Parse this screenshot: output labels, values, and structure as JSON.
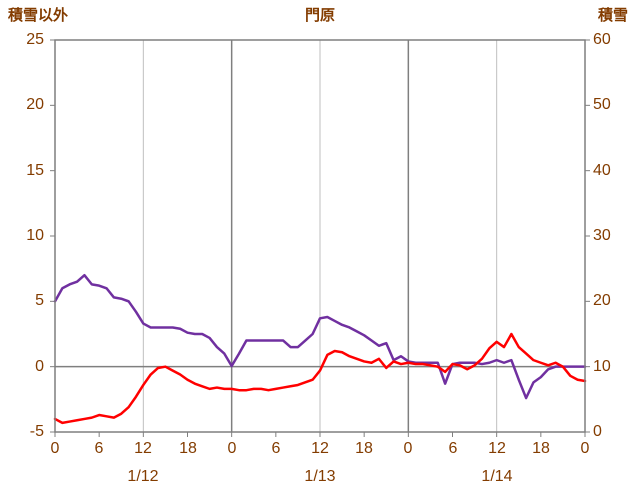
{
  "chart_data": {
    "type": "line",
    "title": "門原",
    "x_axis": {
      "unit": "hour",
      "sample_interval_hours": 1,
      "range_hours": [
        0,
        72
      ],
      "tick_hours": [
        0,
        6,
        12,
        18,
        24,
        30,
        36,
        42,
        48,
        54,
        60,
        66,
        72
      ],
      "tick_labels": [
        "0",
        "6",
        "12",
        "18",
        "0",
        "6",
        "12",
        "18",
        "0",
        "6",
        "12",
        "18",
        "0"
      ],
      "day_labels": [
        "1/12",
        "1/13",
        "1/14"
      ]
    },
    "left_axis": {
      "title": "積雪以外",
      "tick_labels": [
        "25",
        "20",
        "15",
        "10",
        "5",
        "0",
        "-5"
      ],
      "range": [
        -5,
        25
      ]
    },
    "right_axis": {
      "title": "積雪",
      "tick_labels": [
        "60",
        "50",
        "40",
        "30",
        "20",
        "10",
        "0"
      ],
      "range": [
        0,
        60
      ]
    },
    "gridlines": {
      "vertical_hours": [
        12,
        24,
        36,
        48,
        60
      ],
      "day_boundary_hours": [
        24,
        48
      ],
      "horizontal_left_values": [
        0
      ]
    },
    "series": [
      {
        "name": "積雪",
        "axis": "right",
        "color": "#7030A0",
        "values": [
          20,
          22,
          22.6,
          23,
          24,
          22.6,
          22.4,
          22,
          20.6,
          20.4,
          20,
          18.4,
          16.6,
          16,
          16,
          16,
          16,
          15.8,
          15.2,
          15,
          15,
          14.4,
          13,
          12,
          10.1,
          12,
          14,
          14,
          14,
          14,
          14,
          14,
          13,
          13,
          14,
          15,
          17.4,
          17.6,
          17,
          16.4,
          16,
          15.4,
          14.8,
          14,
          13.2,
          13.6,
          11,
          11.6,
          10.8,
          10.6,
          10.6,
          10.6,
          10.6,
          7.4,
          10.4,
          10.6,
          10.6,
          10.6,
          10.4,
          10.6,
          11,
          10.6,
          11,
          8,
          5.2,
          7.6,
          8.4,
          9.6,
          10,
          10,
          10,
          10,
          10
        ]
      },
      {
        "name": "積雪以外",
        "axis": "left",
        "color": "#FF0000",
        "values": [
          -4,
          -4.3,
          -4.2,
          -4.1,
          -4,
          -3.9,
          -3.7,
          -3.8,
          -3.9,
          -3.6,
          -3.1,
          -2.3,
          -1.4,
          -0.6,
          -0.1,
          0,
          -0.3,
          -0.6,
          -1,
          -1.3,
          -1.5,
          -1.7,
          -1.6,
          -1.7,
          -1.7,
          -1.8,
          -1.8,
          -1.7,
          -1.7,
          -1.8,
          -1.7,
          -1.6,
          -1.5,
          -1.4,
          -1.2,
          -1,
          -0.3,
          0.9,
          1.2,
          1.1,
          0.8,
          0.6,
          0.4,
          0.3,
          0.6,
          -0.1,
          0.4,
          0.2,
          0.3,
          0.2,
          0.2,
          0.1,
          0,
          -0.4,
          0.2,
          0.1,
          -0.2,
          0.1,
          0.6,
          1.4,
          1.9,
          1.5,
          2.5,
          1.5,
          1,
          0.5,
          0.3,
          0.1,
          0.3,
          0,
          -0.7,
          -1,
          -1.1
        ]
      }
    ]
  },
  "colors": {
    "label": "#833C00",
    "grid_minor": "#BFBFBF",
    "grid_major": "#7F7F7F",
    "border": "#7F7F7F",
    "background": "#FFFFFF"
  }
}
